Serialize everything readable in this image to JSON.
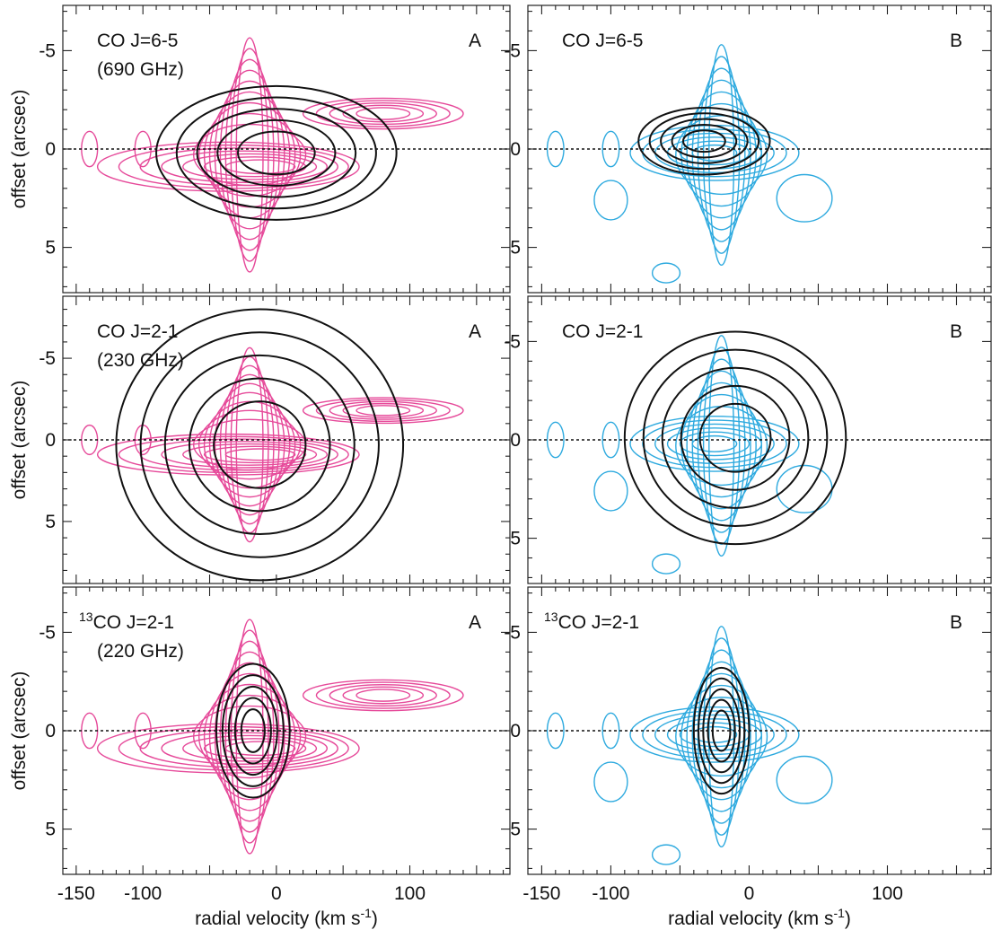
{
  "chart_data": {
    "type": "contour",
    "xlabel": "radial velocity (km s",
    "xlabel_sup": "-1",
    "xlabel_end": ")",
    "ylabel": "offset (arcsec)",
    "xlim": [
      -160,
      175
    ],
    "x_ticks": [
      -150,
      -100,
      -50,
      0,
      50,
      100,
      150
    ],
    "x_tick_labels": [
      "-150",
      "-100",
      "0",
      "100"
    ],
    "x_tick_label_values": [
      -150,
      -100,
      0,
      100
    ],
    "zero_line": 0,
    "colors": {
      "A": "#e64a9a",
      "B": "#2eaadf",
      "overlay": "#111111"
    },
    "panels": [
      {
        "position": "A",
        "label": "A",
        "line_sup": "",
        "line": "CO J=6-5",
        "freq": "(690 GHz)",
        "ylim": [
          7.3,
          -7.3
        ],
        "y_tick_labels": [
          "-5",
          "0",
          "5"
        ],
        "y_tick_values": [
          -5,
          0,
          5
        ],
        "overlay_extent": [
          -90,
          90,
          -3.2,
          3.6
        ]
      },
      {
        "position": "B",
        "label": "B",
        "line_sup": "",
        "line": "CO J=6-5",
        "freq": "",
        "ylim": [
          7.3,
          -7.3
        ],
        "y_tick_labels": [
          "-5",
          "0",
          "5"
        ],
        "y_tick_values": [
          -5,
          0,
          5
        ],
        "overlay_extent": [
          -80,
          15,
          -2.1,
          1.3
        ]
      },
      {
        "position": "A",
        "label": "A",
        "line_sup": "",
        "line": "CO J=2-1",
        "freq": "(230 GHz)",
        "ylim": [
          8.8,
          -8.8
        ],
        "y_tick_labels": [
          "-5",
          "0",
          "5"
        ],
        "y_tick_values": [
          -5,
          0,
          5
        ],
        "overlay_extent": [
          -120,
          95,
          -8.0,
          8.6
        ]
      },
      {
        "position": "B",
        "label": "B",
        "line_sup": "",
        "line": "CO J=2-1",
        "freq": "",
        "ylim": [
          7.3,
          -7.3
        ],
        "y_tick_labels": [
          "-5",
          "0",
          "5"
        ],
        "y_tick_values": [
          -5,
          0,
          5
        ],
        "overlay_extent": [
          -90,
          70,
          -5.5,
          5.3
        ]
      },
      {
        "position": "A",
        "label": "A",
        "line_sup": "13",
        "line": "CO J=2-1",
        "freq": "(220 GHz)",
        "ylim": [
          7.3,
          -7.3
        ],
        "y_tick_labels": [
          "-5",
          "0",
          "5"
        ],
        "y_tick_values": [
          -5,
          0,
          5
        ],
        "overlay_extent": [
          -45,
          10,
          -3.4,
          3.4
        ]
      },
      {
        "position": "B",
        "label": "B",
        "line_sup": "13",
        "line": "CO J=2-1",
        "freq": "",
        "ylim": [
          7.3,
          -7.3
        ],
        "y_tick_labels": [
          "-5",
          "0",
          "5"
        ],
        "y_tick_values": [
          -5,
          0,
          5
        ],
        "overlay_extent": [
          -40,
          0,
          -3.2,
          3.2
        ]
      }
    ]
  }
}
